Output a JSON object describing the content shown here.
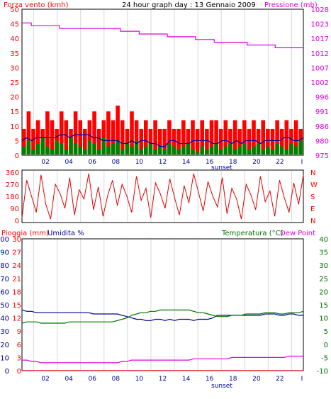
{
  "chart_data": [
    {
      "type": "line",
      "title": "24 hour graph day : 13 Gennaio 2009",
      "ylabel_left": "Forza vento (kmh)",
      "ylabel_right": "Pressione (mb)",
      "ylim_left": [
        0,
        50
      ],
      "ylim_right": [
        975,
        1028
      ],
      "yticks_left": [
        "0",
        "5",
        "10",
        "15",
        "20",
        "25",
        "30",
        "35",
        "40",
        "45",
        "50"
      ],
      "yticks_right": [
        "975",
        "980",
        "986",
        "991",
        "996",
        "1002",
        "1007",
        "1012",
        "1017",
        "1023",
        "1028"
      ],
      "xticks": [
        "02",
        "04",
        "06",
        "08",
        "10",
        "12",
        "14",
        "16",
        "18",
        "20",
        "22"
      ],
      "x_marker": "sunset",
      "series": [
        {
          "name": "",
          "kind": "gust",
          "color": "#ff0000",
          "values": [
            9,
            15,
            9,
            12,
            9,
            15,
            12,
            9,
            15,
            12,
            9,
            15,
            12,
            9,
            12,
            15,
            9,
            12,
            15,
            12,
            17,
            12,
            9,
            15,
            12,
            9,
            12,
            9,
            12,
            9,
            9,
            12,
            9,
            9,
            12,
            9,
            12,
            9,
            12,
            9,
            12,
            12,
            9,
            12,
            9,
            12,
            9,
            12,
            9,
            12,
            9,
            12,
            9,
            9,
            12,
            9,
            12,
            9,
            12,
            9
          ]
        },
        {
          "name": "",
          "kind": "average",
          "color": "#008000",
          "values": [
            3,
            5,
            2,
            4,
            6,
            3,
            2,
            5,
            4,
            2,
            6,
            4,
            3,
            2,
            5,
            4,
            2,
            6,
            3,
            4,
            5,
            2,
            4,
            3,
            5,
            2,
            3,
            4,
            2,
            3,
            2,
            4,
            3,
            2,
            3,
            4,
            2,
            1,
            3,
            2,
            3,
            4,
            2,
            3,
            4,
            2,
            3,
            4,
            2,
            3,
            4,
            2,
            3,
            2,
            4,
            3,
            2,
            4,
            3,
            5
          ]
        },
        {
          "name": "",
          "kind": "speed",
          "color": "#0000a0",
          "values": [
            5,
            6,
            5,
            6,
            6,
            6,
            6,
            6,
            7,
            7,
            6,
            7,
            7,
            7,
            7,
            6,
            6,
            5,
            5,
            5,
            5,
            4,
            4,
            5,
            4,
            5,
            5,
            4,
            4,
            3,
            3,
            5,
            5,
            4,
            4,
            4,
            5,
            5,
            5,
            5,
            4,
            4,
            5,
            5,
            4,
            5,
            4,
            5,
            5,
            5,
            4,
            5,
            5,
            5,
            5,
            6,
            6,
            5,
            5,
            6
          ]
        },
        {
          "name": "",
          "kind": "pressure",
          "color": "#e000e0",
          "values": [
            1023,
            1023,
            1022,
            1022,
            1022,
            1022,
            1022,
            1022,
            1021,
            1021,
            1021,
            1021,
            1021,
            1021,
            1021,
            1021,
            1021,
            1021,
            1021,
            1021,
            1021,
            1020,
            1020,
            1020,
            1020,
            1019,
            1019,
            1019,
            1019,
            1019,
            1019,
            1018,
            1018,
            1018,
            1018,
            1018,
            1018,
            1017,
            1017,
            1017,
            1017,
            1016,
            1016,
            1016,
            1016,
            1016,
            1016,
            1016,
            1015,
            1015,
            1015,
            1015,
            1015,
            1015,
            1014,
            1014,
            1014,
            1014,
            1014,
            1014
          ]
        }
      ]
    },
    {
      "type": "line",
      "title": "",
      "ylim": [
        0,
        360
      ],
      "yticks": [
        "0",
        "90",
        "180",
        "270",
        "360"
      ],
      "ylabels_right": [
        "N",
        "W",
        "S",
        "E",
        "N"
      ],
      "series": [
        {
          "name": "",
          "kind": "wind_direction",
          "color": "#e00000",
          "values": [
            20,
            300,
            180,
            60,
            340,
            120,
            10,
            270,
            200,
            90,
            320,
            40,
            230,
            160,
            350,
            80,
            250,
            30,
            190,
            300,
            110,
            270,
            180,
            60,
            330,
            150,
            240,
            20,
            280,
            200,
            90,
            310,
            170,
            40,
            260,
            130,
            350,
            210,
            70,
            290,
            180,
            100,
            320,
            50,
            240,
            160,
            10,
            270,
            190,
            80,
            330,
            140,
            220,
            30,
            300,
            170,
            60,
            280,
            120,
            340
          ]
        }
      ]
    },
    {
      "type": "line",
      "title": "",
      "ylabel_left_1": "Pioggia (mm)",
      "ylabel_left_2": "Umidita %",
      "ylabel_right_1": "Temperatura (°C)",
      "ylabel_right_2": "Dew Point",
      "ylim_humidity": [
        0,
        100
      ],
      "ylim_rain": [
        0,
        30
      ],
      "ylim_temp": [
        -10,
        40
      ],
      "yticks_humidity": [
        "0",
        "10",
        "20",
        "30",
        "40",
        "50",
        "60",
        "70",
        "80",
        "90",
        "100"
      ],
      "yticks_rain": [
        "0",
        "3",
        "6",
        "9",
        "12",
        "15",
        "18",
        "21",
        "24",
        "27",
        "30"
      ],
      "yticks_temp": [
        "-10",
        "-5",
        "0",
        "5",
        "10",
        "15",
        "20",
        "25",
        "30",
        "35",
        "40"
      ],
      "xticks": [
        "02",
        "04",
        "06",
        "08",
        "10",
        "12",
        "14",
        "16",
        "18",
        "20",
        "22"
      ],
      "x_marker": "sunset",
      "series": [
        {
          "name": "Umidita %",
          "color": "#000090",
          "axis": "humidity",
          "values": [
            46,
            45,
            45,
            44,
            44,
            44,
            44,
            44,
            44,
            44,
            44,
            44,
            44,
            44,
            44,
            43,
            43,
            43,
            43,
            43,
            43,
            42,
            41,
            40,
            39,
            39,
            38,
            38,
            39,
            39,
            38,
            39,
            38,
            39,
            39,
            39,
            38,
            39,
            39,
            39,
            40,
            42,
            42,
            42,
            42,
            42,
            42,
            42,
            42,
            42,
            42,
            43,
            43,
            43,
            42,
            42,
            43,
            43,
            42,
            42
          ]
        },
        {
          "name": "Temperatura (°C)",
          "color": "#007000",
          "axis": "temp",
          "values": [
            8,
            8.5,
            8.5,
            8.5,
            8,
            8,
            8,
            8,
            8,
            8,
            8.5,
            8.5,
            8.5,
            8.5,
            8.5,
            8.5,
            8.5,
            8.5,
            8.5,
            8.5,
            9,
            9.5,
            10,
            11,
            11.5,
            12,
            12,
            12.5,
            12.5,
            13,
            13,
            13,
            13,
            13,
            13,
            13,
            12.5,
            12,
            12,
            11.5,
            11,
            10.5,
            10.5,
            10.5,
            11,
            11,
            11,
            11.5,
            11.5,
            11.5,
            11.5,
            12,
            12,
            12,
            11.5,
            11.5,
            12,
            12,
            12,
            12.5
          ]
        },
        {
          "name": "Dew Point",
          "color": "#e000e0",
          "axis": "temp",
          "values": [
            -6,
            -6,
            -6.5,
            -6.5,
            -7,
            -7,
            -7,
            -7,
            -7,
            -7,
            -7,
            -7,
            -7,
            -7,
            -7,
            -7,
            -7,
            -7,
            -7,
            -7,
            -7,
            -6.5,
            -6.5,
            -6,
            -6,
            -6,
            -6,
            -6,
            -6,
            -6,
            -6,
            -6,
            -6,
            -6,
            -6,
            -6,
            -5.5,
            -5.5,
            -5.5,
            -5.5,
            -5.5,
            -5.5,
            -5.5,
            -5.5,
            -5,
            -5,
            -5,
            -5,
            -5,
            -5,
            -5,
            -5,
            -5,
            -5,
            -5,
            -5,
            -4.5,
            -4.5,
            -4.5,
            -4.5
          ]
        },
        {
          "name": "Pioggia (mm)",
          "color": "#d00000",
          "axis": "rain",
          "values": [
            0,
            0,
            0,
            0,
            0,
            0,
            0,
            0,
            0,
            0,
            0,
            0,
            0,
            0,
            0,
            0,
            0,
            0,
            0,
            0,
            0,
            0,
            0,
            0,
            0,
            0,
            0,
            0,
            0,
            0,
            0,
            0,
            0,
            0,
            0,
            0,
            0,
            0,
            0,
            0,
            0,
            0,
            0,
            0,
            0,
            0,
            0,
            0,
            0,
            0,
            0,
            0,
            0,
            0,
            0,
            0,
            0,
            0,
            0,
            0
          ]
        }
      ]
    }
  ]
}
